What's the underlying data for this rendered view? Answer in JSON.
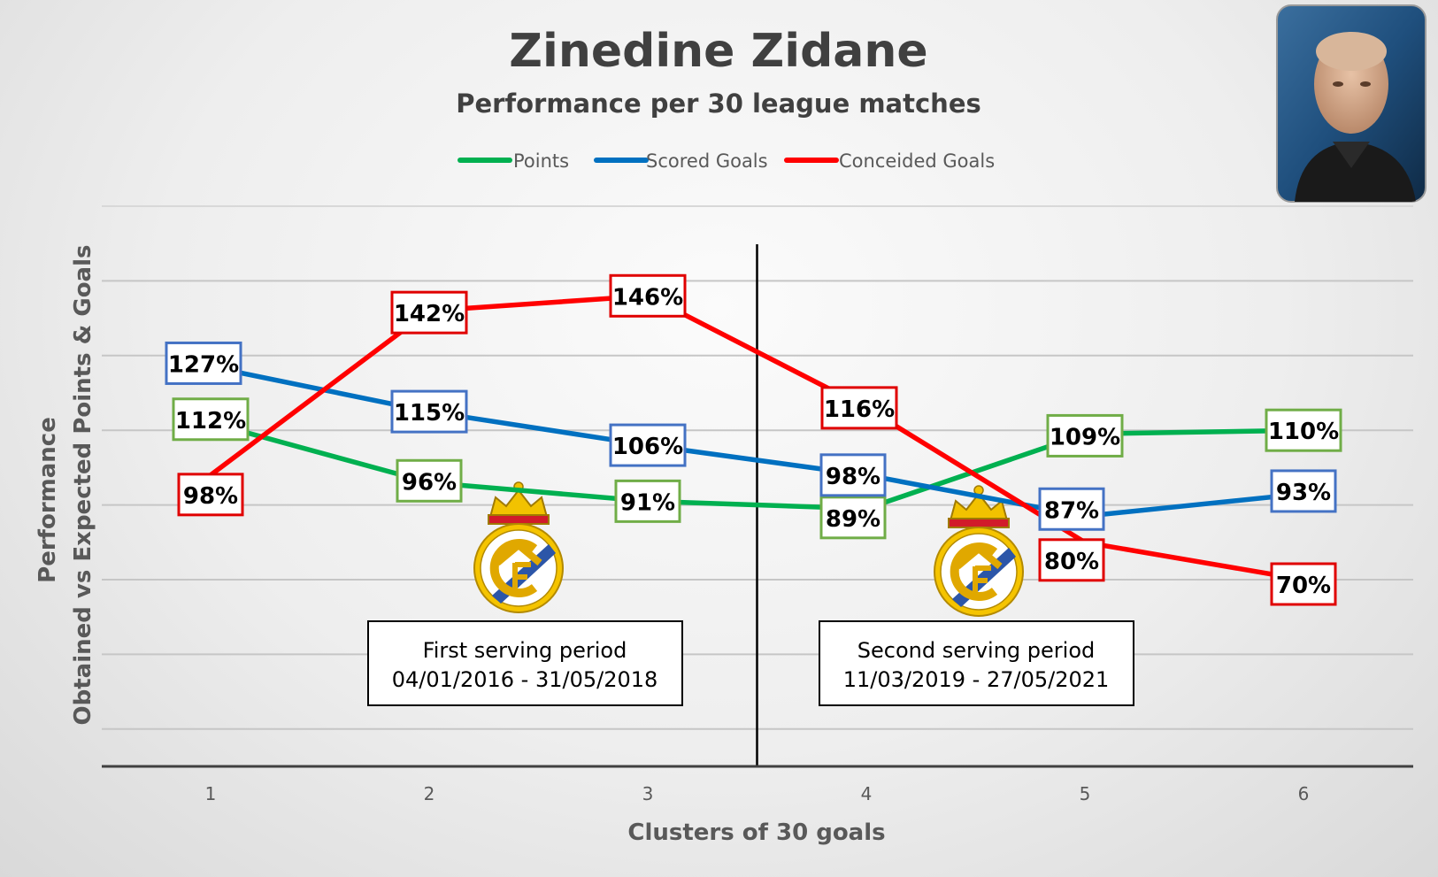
{
  "chart_data": {
    "type": "line",
    "title": "Zinedine Zidane",
    "subtitle": "Performance per 30 league matches",
    "xlabel": "Clusters of 30 goals",
    "ylabel_line1": "Performance",
    "ylabel_line2": "Obtained vs Expected Points & Goals",
    "x": [
      1,
      2,
      3,
      4,
      5,
      6
    ],
    "ylim": [
      20,
      170
    ],
    "grid": true,
    "legend_position": "top",
    "series": [
      {
        "name": "Points",
        "color": "#00b050",
        "box_color": "#70ad47",
        "values": [
          112,
          96,
          91,
          89,
          109,
          110
        ]
      },
      {
        "name": "Scored Goals",
        "color": "#0070c0",
        "box_color": "#4472c4",
        "values": [
          127,
          115,
          106,
          98,
          87,
          93
        ]
      },
      {
        "name": "Conceided Goals",
        "color": "#ff0000",
        "box_color": "#e00000",
        "values": [
          98,
          142,
          146,
          116,
          80,
          70
        ]
      }
    ],
    "data_labels": {
      "Points": [
        "112%",
        "96%",
        "91%",
        "89%",
        "109%",
        "110%"
      ],
      "Scored Goals": [
        "127%",
        "115%",
        "106%",
        "98%",
        "87%",
        "93%"
      ],
      "Conceided Goals": [
        "98%",
        "142%",
        "146%",
        "116%",
        "80%",
        "70%"
      ]
    },
    "divider_x": 3.5,
    "annotations": [
      {
        "line1": "First serving period",
        "line2": "04/01/2016 - 31/05/2018"
      },
      {
        "line1": "Second serving period",
        "line2": "11/03/2019 - 27/05/2021"
      }
    ]
  },
  "icons": {
    "club_logo": "real-madrid-crest",
    "photo": "portrait-photo"
  }
}
